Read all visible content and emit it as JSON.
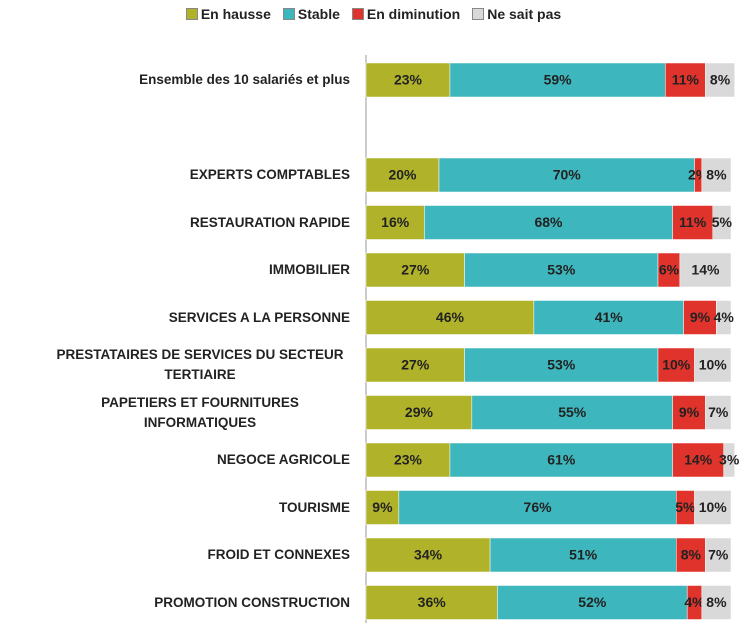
{
  "chart_data": {
    "type": "stacked_barh",
    "categories": [
      "Ensemble des 10 salariés et plus",
      null,
      "EXPERTS COMPTABLES",
      "RESTAURATION RAPIDE",
      "IMMOBILIER",
      "SERVICES A LA PERSONNE",
      "PRESTATAIRES DE SERVICES DU SECTEUR TERTIAIRE",
      "PAPETIERS ET FOURNITURES INFORMATIQUES",
      "NEGOCE AGRICOLE",
      "TOURISME",
      "FROID ET CONNEXES",
      "PROMOTION CONSTRUCTION"
    ],
    "xlim": [
      0,
      100
    ],
    "legend": "top",
    "series": [
      {
        "name": "En hausse",
        "color": "#b0b32a",
        "values": [
          23,
          null,
          20,
          16,
          27,
          46,
          27,
          29,
          23,
          9,
          34,
          36
        ],
        "value_labels": [
          "23%",
          null,
          "20%",
          "16%",
          "27%",
          "46%",
          "27%",
          "29%",
          "23%",
          "9%",
          "34%",
          "36%"
        ]
      },
      {
        "name": "Stable",
        "color": "#3eb6bd",
        "values": [
          59,
          null,
          70,
          68,
          53,
          41,
          53,
          55,
          61,
          76,
          51,
          52
        ],
        "value_labels": [
          "59%",
          null,
          "70%",
          "68%",
          "53%",
          "41%",
          "53%",
          "55%",
          "61%",
          "76%",
          "51%",
          "52%"
        ]
      },
      {
        "name": "En diminution",
        "color": "#e0332c",
        "values": [
          11,
          null,
          2,
          11,
          6,
          9,
          10,
          9,
          14,
          5,
          8,
          4
        ],
        "value_labels": [
          "11%",
          null,
          "2%",
          "11%",
          "6%",
          "9%",
          "10%",
          "9%",
          "14%",
          "5%",
          "8%",
          "4%"
        ]
      },
      {
        "name": "Ne sait pas",
        "color": "#d9d9d9",
        "values": [
          8,
          null,
          8,
          5,
          14,
          4,
          10,
          7,
          3,
          10,
          7,
          8
        ],
        "value_labels": [
          "8%",
          null,
          "8%",
          "5%",
          "14%",
          "4%",
          "10%",
          "7%",
          "3%",
          "10%",
          "7%",
          "8%"
        ]
      }
    ]
  }
}
